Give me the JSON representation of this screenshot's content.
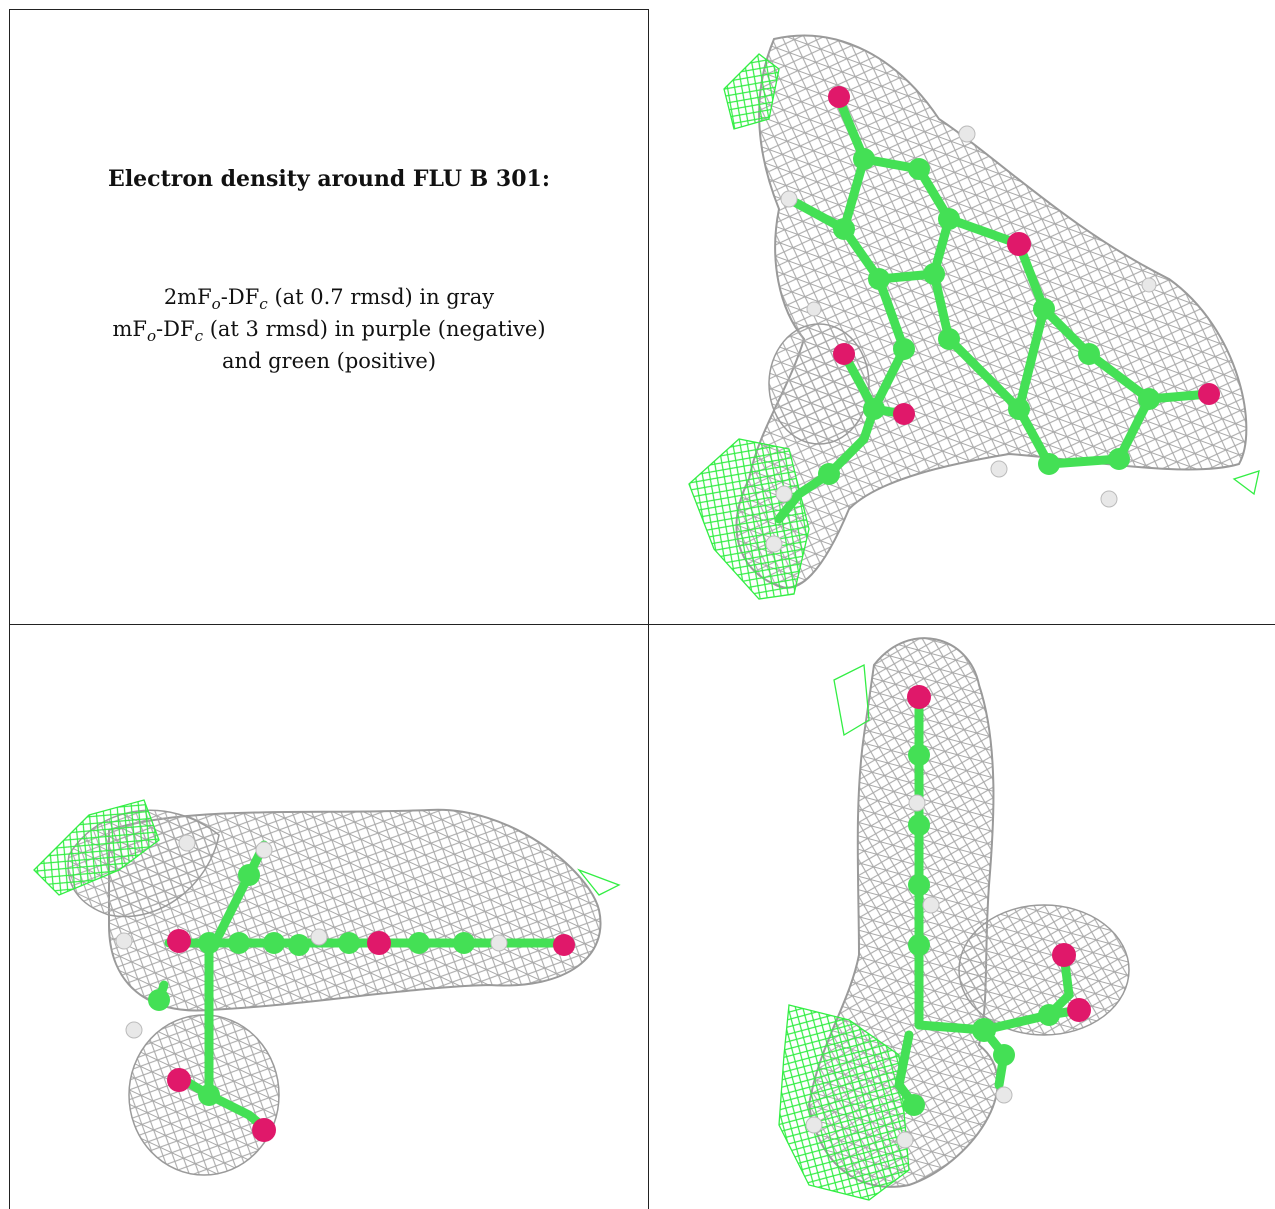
{
  "caption": {
    "title": "Electron density around FLU B 301:",
    "line1": {
      "a": "2mF",
      "b": "o",
      "c": "-DF",
      "d": "c",
      "e": " (at 0.7 rmsd) in gray"
    },
    "line2": {
      "a": "mF",
      "b": "o",
      "c": "-DF",
      "d": "c",
      "e": " (at 3 rmsd) in purple (negative)"
    },
    "line3": "and green (positive)"
  },
  "colors": {
    "density_2fofc": "#a9a9a9",
    "difference_positive": "#33ee44",
    "difference_negative": "#b040c0",
    "carbon": "#44e055",
    "oxygen": "#e0186a",
    "hydrogen": "#e8e8e8",
    "border": "#222222"
  },
  "panels": [
    {
      "name": "view-front",
      "description_icon": "molecule-density-icon"
    },
    {
      "name": "view-side",
      "description_icon": "molecule-density-icon"
    },
    {
      "name": "view-edge",
      "description_icon": "molecule-density-icon"
    }
  ]
}
